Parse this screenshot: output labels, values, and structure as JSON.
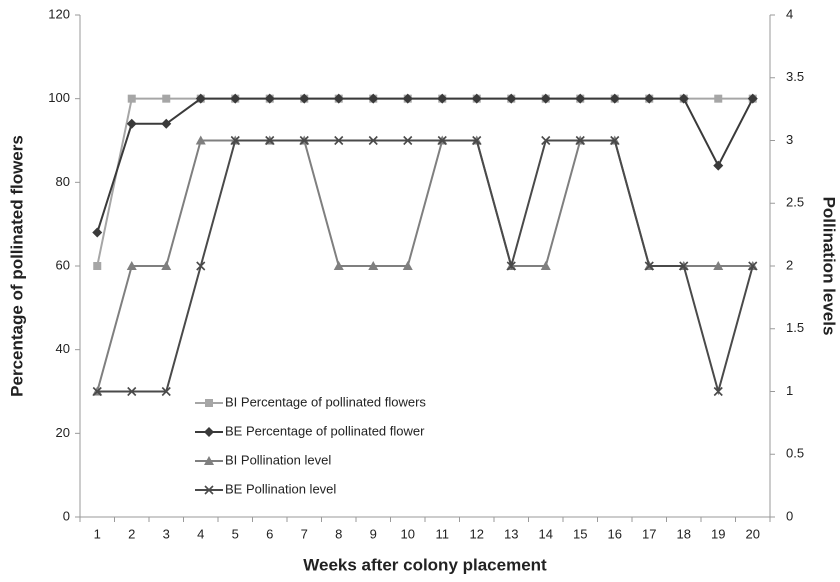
{
  "chart_data": {
    "type": "line",
    "xlabel": "Weeks after colony placement",
    "ylabel": "Percentage of pollinated flowers",
    "y2label": "Pollination levels",
    "categories": [
      "1",
      "2",
      "3",
      "4",
      "5",
      "6",
      "7",
      "8",
      "9",
      "10",
      "11",
      "12",
      "13",
      "14",
      "15",
      "16",
      "17",
      "18",
      "19",
      "20"
    ],
    "ylim": [
      0,
      120
    ],
    "yticks": [
      0,
      20,
      40,
      60,
      80,
      100,
      120
    ],
    "y2lim": [
      0,
      4
    ],
    "y2ticks": [
      0,
      0.5,
      1,
      1.5,
      2,
      2.5,
      3,
      3.5,
      4
    ],
    "grid": false,
    "legend": "lower left",
    "series": [
      {
        "name": "BI Percentage of pollinated flowers",
        "color": "#a6a6a6",
        "marker": "square",
        "values": [
          60,
          100,
          100,
          100,
          100,
          100,
          100,
          100,
          100,
          100,
          100,
          100,
          100,
          100,
          100,
          100,
          100,
          100,
          100,
          100
        ]
      },
      {
        "name": "BE Percentage of pollinated flower",
        "color": "#3a3a3a",
        "marker": "diamond",
        "values": [
          68,
          94,
          94,
          100,
          100,
          100,
          100,
          100,
          100,
          100,
          100,
          100,
          100,
          100,
          100,
          100,
          100,
          100,
          84,
          100
        ]
      },
      {
        "name": "BI Pollination level",
        "color": "#7f7f7f",
        "marker": "triangle",
        "axis": "y2",
        "values": [
          1,
          2,
          2,
          3,
          3,
          3,
          3,
          2,
          2,
          2,
          3,
          3,
          2,
          2,
          3,
          3,
          2,
          2,
          2,
          2
        ]
      },
      {
        "name": "BE Pollination level",
        "color": "#4a4a4a",
        "marker": "x",
        "axis": "y2",
        "values": [
          1,
          1,
          1,
          2,
          3,
          3,
          3,
          3,
          3,
          3,
          3,
          3,
          2,
          3,
          3,
          3,
          2,
          2,
          1,
          2
        ]
      }
    ]
  }
}
